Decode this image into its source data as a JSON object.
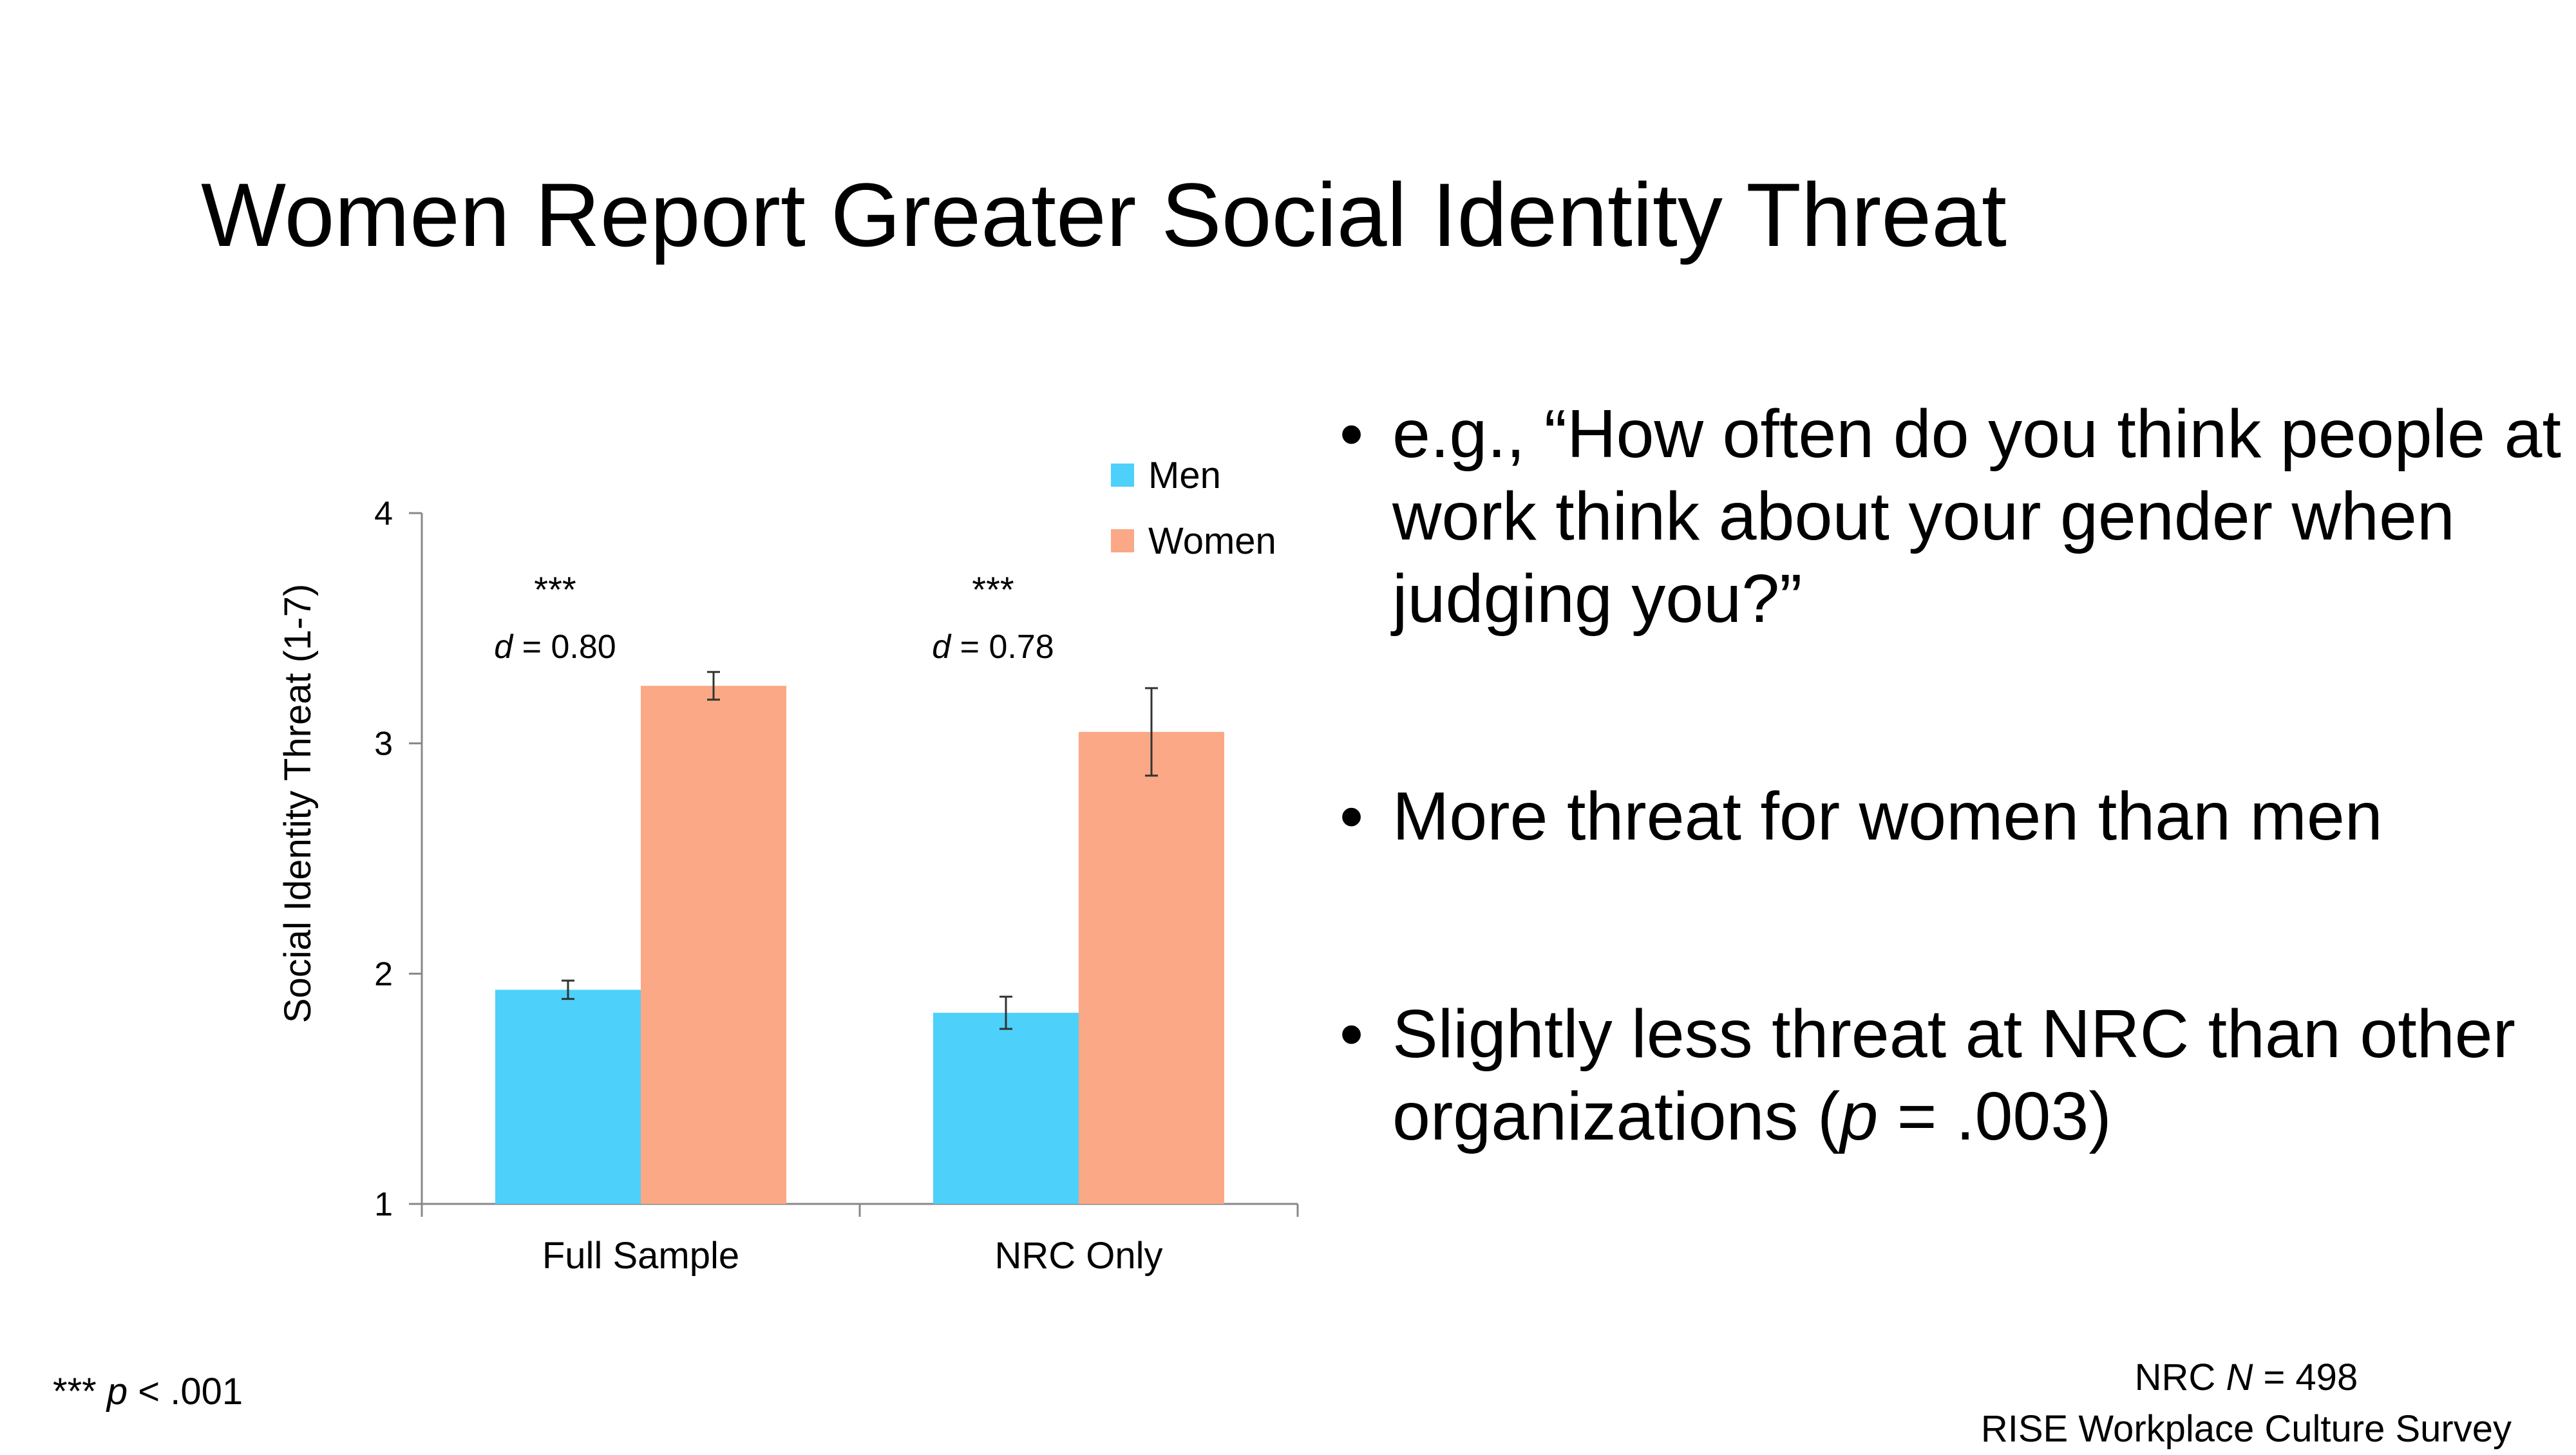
{
  "title": "Women Report Greater Social Identity Threat",
  "chart_data": {
    "type": "bar",
    "categories": [
      "Full Sample",
      "NRC Only"
    ],
    "series": [
      {
        "name": "Men",
        "color": "#4dd0fa",
        "values": [
          1.93,
          1.83
        ],
        "errors": [
          0.04,
          0.07
        ]
      },
      {
        "name": "Women",
        "color": "#fba886",
        "values": [
          3.25,
          3.05
        ],
        "errors": [
          0.06,
          0.19
        ]
      }
    ],
    "ylabel": "Social Identity Threat (1-7)",
    "xlabel": "",
    "ylim": [
      1,
      4
    ],
    "yticks": [
      "1",
      "2",
      "3",
      "4"
    ],
    "grid": false,
    "legend_position": "top-right",
    "annotations": [
      {
        "stars": "***",
        "effect_prefix": "d",
        "effect_text": " = 0.80"
      },
      {
        "stars": "***",
        "effect_prefix": "d",
        "effect_text": " = 0.78"
      }
    ]
  },
  "bullets": [
    {
      "text": "e.g., “How often do you think people at work think about your gender when judging you?”"
    },
    {
      "text": "More threat for women than men"
    },
    {
      "text_before": "Slightly less threat at NRC than other organizations (",
      "italic": "p",
      "text_after": " = .003)"
    }
  ],
  "footnote_left": {
    "stars": "***",
    "italic": "p",
    "rest": " < .001"
  },
  "footnote_right": {
    "line1_prefix": "NRC ",
    "line1_italic": "N",
    "line1_rest": " = 498",
    "line2": "RISE Workplace Culture Survey"
  },
  "bullet_symbol": "•"
}
